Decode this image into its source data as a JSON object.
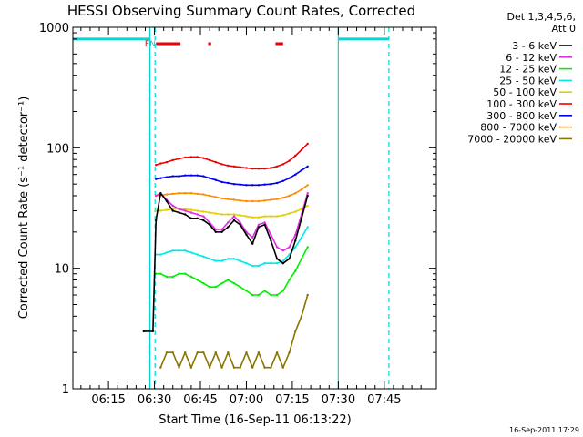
{
  "chart_data": {
    "type": "line",
    "title": "HESSI Observing Summary Count Rates, Corrected",
    "xlabel": "Start Time (16-Sep-11 06:13:22)",
    "ylabel": "Corrected Count Rate (s⁻¹ detector⁻¹)",
    "y_scale": "log",
    "ylim": [
      1,
      1000
    ],
    "xlim_minutes": [
      363.37,
      482
    ],
    "x_ticks": [
      {
        "t": 375,
        "label": "06:15"
      },
      {
        "t": 390,
        "label": "06:30"
      },
      {
        "t": 405,
        "label": "06:45"
      },
      {
        "t": 420,
        "label": "07:00"
      },
      {
        "t": 435,
        "label": "07:15"
      },
      {
        "t": 450,
        "label": "07:30"
      },
      {
        "t": 465,
        "label": "07:45"
      }
    ],
    "y_ticks": [
      {
        "v": 1,
        "label": "1"
      },
      {
        "v": 10,
        "label": "10"
      },
      {
        "v": 100,
        "label": "100"
      },
      {
        "v": 1000,
        "label": "1000"
      }
    ],
    "legend_header": [
      "Det 1,3,4,5,6,",
      "Att 0"
    ],
    "legend_position": "right",
    "footer_stamp": "16-Sep-2011 17:29",
    "series": [
      {
        "name": "3 - 6 keV",
        "color": "#000000",
        "x": [
          386.5,
          389.5,
          390.5,
          392,
          394,
          396,
          398,
          400,
          402,
          404,
          406,
          408,
          410,
          412,
          414,
          416,
          418,
          420,
          422,
          424,
          426,
          428,
          430,
          432,
          434,
          436,
          438,
          440
        ],
        "y": [
          3,
          3,
          25,
          42,
          36,
          30,
          29,
          28,
          26,
          26,
          25,
          23,
          20,
          20,
          22,
          25,
          23,
          19,
          16,
          22,
          23,
          17,
          12,
          11,
          12,
          17,
          26,
          40
        ]
      },
      {
        "name": "6 - 12 keV",
        "color": "#e02ce0",
        "x": [
          390.5,
          392,
          394,
          396,
          398,
          400,
          402,
          404,
          406,
          408,
          410,
          412,
          414,
          416,
          418,
          420,
          422,
          424,
          426,
          428,
          430,
          432,
          434,
          436,
          438,
          440
        ],
        "y": [
          40,
          42,
          37,
          33,
          31,
          30,
          29,
          28,
          27,
          24,
          21,
          21,
          24,
          27,
          24,
          20,
          18,
          23,
          24,
          19,
          15,
          14,
          15,
          19,
          28,
          42
        ]
      },
      {
        "name": "12 - 25 keV",
        "color": "#00ee00",
        "x": [
          390.5,
          392,
          394,
          396,
          398,
          400,
          402,
          404,
          406,
          408,
          410,
          412,
          414,
          416,
          418,
          420,
          422,
          424,
          426,
          428,
          430,
          432,
          434,
          436,
          438,
          440
        ],
        "y": [
          9,
          9,
          8.5,
          8.5,
          9,
          9,
          8.5,
          8,
          7.5,
          7,
          7,
          7.5,
          8,
          7.5,
          7,
          6.5,
          6,
          6,
          6.5,
          6,
          6,
          6.5,
          8,
          9.5,
          12,
          15
        ]
      },
      {
        "name": "25 - 50 keV",
        "color": "#00e8e8",
        "x": [
          390.5,
          392,
          394,
          396,
          398,
          400,
          402,
          404,
          406,
          408,
          410,
          412,
          414,
          416,
          418,
          420,
          422,
          424,
          426,
          428,
          430,
          432,
          434,
          436,
          438,
          440
        ],
        "y": [
          13,
          13,
          13.5,
          14,
          14,
          14,
          13.5,
          13,
          12.5,
          12,
          11.5,
          11.5,
          12,
          12,
          11.5,
          11,
          10.5,
          10.5,
          11,
          11,
          11,
          11.5,
          13,
          15,
          18,
          22
        ]
      },
      {
        "name": "50 - 100 keV",
        "color": "#e0d000",
        "x": [
          390.5,
          392,
          394,
          396,
          398,
          400,
          402,
          404,
          406,
          408,
          410,
          412,
          414,
          416,
          418,
          420,
          422,
          424,
          426,
          428,
          430,
          432,
          434,
          436,
          438,
          440
        ],
        "y": [
          30,
          30,
          30.5,
          31,
          31,
          31,
          30.5,
          30,
          29.5,
          29,
          28.5,
          28,
          28,
          28,
          27.5,
          27,
          26.5,
          26.5,
          27,
          27,
          27,
          27.5,
          28.5,
          29.5,
          31,
          33
        ]
      },
      {
        "name": "100 - 300 keV",
        "color": "#ee0000",
        "x": [
          390.5,
          392,
          394,
          396,
          398,
          400,
          402,
          404,
          406,
          408,
          410,
          412,
          414,
          416,
          418,
          420,
          422,
          424,
          426,
          428,
          430,
          432,
          434,
          436,
          438,
          440
        ],
        "y": [
          72,
          74,
          76,
          79,
          81,
          83,
          84,
          84,
          82,
          79,
          76,
          73,
          71,
          70,
          69,
          68,
          67,
          67,
          67,
          68,
          70,
          73,
          78,
          86,
          96,
          108
        ]
      },
      {
        "name": "300 - 800 keV",
        "color": "#0000ee",
        "x": [
          390.5,
          392,
          394,
          396,
          398,
          400,
          402,
          404,
          406,
          408,
          410,
          412,
          414,
          416,
          418,
          420,
          422,
          424,
          426,
          428,
          430,
          432,
          434,
          436,
          438,
          440
        ],
        "y": [
          55,
          56,
          57,
          58,
          58,
          59,
          59,
          59,
          58,
          56,
          54,
          52,
          51,
          50,
          49.5,
          49,
          49,
          49,
          49.5,
          50,
          51,
          53,
          56,
          60,
          65,
          70
        ]
      },
      {
        "name": "800 - 7000 keV",
        "color": "#ff8c00",
        "x": [
          390.5,
          392,
          394,
          396,
          398,
          400,
          402,
          404,
          406,
          408,
          410,
          412,
          414,
          416,
          418,
          420,
          422,
          424,
          426,
          428,
          430,
          432,
          434,
          436,
          438,
          440
        ],
        "y": [
          40,
          40.5,
          41,
          41.5,
          42,
          42,
          42,
          41.5,
          41,
          40,
          39,
          38,
          37.5,
          37,
          36.5,
          36,
          36,
          36,
          36.5,
          37,
          37.5,
          38.5,
          40,
          42,
          45,
          49
        ]
      },
      {
        "name": "7000 - 20000 keV",
        "color": "#8b7500",
        "x": [
          392,
          394,
          396,
          398,
          400,
          402,
          404,
          406,
          408,
          410,
          412,
          414,
          416,
          418,
          420,
          422,
          424,
          426,
          428,
          430,
          432,
          434,
          436,
          438,
          440
        ],
        "y": [
          1.5,
          2,
          2,
          1.5,
          2,
          1.5,
          2,
          2,
          1.5,
          2,
          1.5,
          2,
          1.5,
          1.5,
          2,
          1.5,
          2,
          1.5,
          1.5,
          2,
          1.5,
          2,
          3,
          4,
          6
        ]
      }
    ],
    "attenuator_level": [
      {
        "x": [
          363.37,
          388.5
        ],
        "y": 800
      },
      {
        "x": [
          450,
          466.5
        ],
        "y": 800
      }
    ],
    "vertical_markers": [
      {
        "t": 388.5,
        "style": "solid",
        "color": "#00d8d8"
      },
      {
        "t": 390.2,
        "style": "dashed",
        "color": "#00d8d8"
      },
      {
        "t": 450,
        "style": "solid",
        "color": "#00d8d8"
      },
      {
        "t": 466.5,
        "style": "dashed",
        "color": "#00d8d8"
      }
    ],
    "flare_flags": [
      {
        "start": 390.5,
        "end": 398.5
      },
      {
        "start": 407.5,
        "end": 408.5
      },
      {
        "start": 429.5,
        "end": 432
      }
    ],
    "flag_labels": [
      {
        "text": "F",
        "t": 388.8,
        "color": "#ee0000"
      },
      {
        "text": "N",
        "t": 390.6,
        "color": "#00c8c8"
      }
    ]
  }
}
